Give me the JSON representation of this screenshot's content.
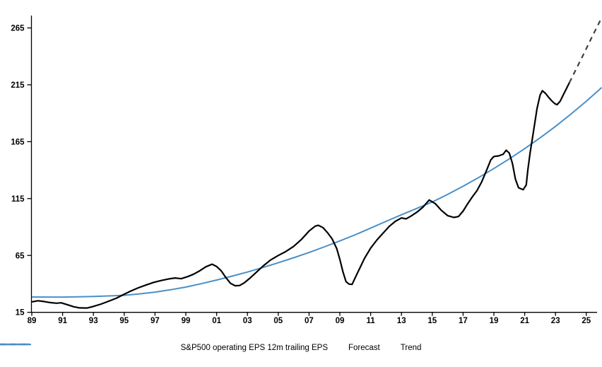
{
  "chart_data": {
    "type": "line",
    "title": "",
    "grid": false,
    "background": "#ffffff",
    "legend_position": "bottom-center",
    "x_axis": {
      "base_year": 1989,
      "range": [
        1989,
        2026.2
      ],
      "tick_years": [
        1989,
        1991,
        1993,
        1995,
        1997,
        1999,
        2001,
        2003,
        2005,
        2007,
        2009,
        2011,
        2013,
        2015,
        2017,
        2019,
        2021,
        2023,
        2025
      ],
      "tick_labels": [
        "89",
        "91",
        "93",
        "95",
        "97",
        "99",
        "01",
        "03",
        "05",
        "07",
        "09",
        "11",
        "13",
        "15",
        "17",
        "19",
        "21",
        "23",
        "25"
      ]
    },
    "y_axis": {
      "ticks": [
        15,
        65,
        115,
        165,
        215,
        265
      ],
      "range": [
        15,
        280
      ]
    },
    "series": [
      {
        "id": "eps",
        "name": "S&P500 operating EPS 12m trailing EPS",
        "color": "#000000",
        "dash": null,
        "width": 2.2,
        "points": [
          [
            1989.0,
            24.2
          ],
          [
            1989.4,
            25.2
          ],
          [
            1989.8,
            24.5
          ],
          [
            1990.2,
            23.6
          ],
          [
            1990.6,
            23.0
          ],
          [
            1990.9,
            23.4
          ],
          [
            1991.3,
            21.8
          ],
          [
            1991.7,
            20.0
          ],
          [
            1992.1,
            18.9
          ],
          [
            1992.6,
            18.8
          ],
          [
            1993.0,
            20.2
          ],
          [
            1993.5,
            22.3
          ],
          [
            1994.0,
            24.8
          ],
          [
            1994.5,
            27.5
          ],
          [
            1994.9,
            30.3
          ],
          [
            1995.4,
            33.5
          ],
          [
            1995.9,
            36.5
          ],
          [
            1996.4,
            38.9
          ],
          [
            1996.9,
            41.3
          ],
          [
            1997.4,
            43.0
          ],
          [
            1997.9,
            44.4
          ],
          [
            1998.3,
            45.2
          ],
          [
            1998.7,
            44.6
          ],
          [
            1999.1,
            46.3
          ],
          [
            1999.5,
            48.5
          ],
          [
            1999.9,
            51.5
          ],
          [
            2000.3,
            55.0
          ],
          [
            2000.7,
            57.3
          ],
          [
            2001.0,
            55.3
          ],
          [
            2001.3,
            51.5
          ],
          [
            2001.6,
            45.5
          ],
          [
            2001.9,
            40.5
          ],
          [
            2002.2,
            38.4
          ],
          [
            2002.5,
            38.6
          ],
          [
            2002.8,
            41.0
          ],
          [
            2003.2,
            45.5
          ],
          [
            2003.6,
            50.5
          ],
          [
            2004.0,
            55.5
          ],
          [
            2004.5,
            61.0
          ],
          [
            2005.0,
            65.0
          ],
          [
            2005.5,
            68.5
          ],
          [
            2006.0,
            73.0
          ],
          [
            2006.5,
            79.0
          ],
          [
            2007.0,
            86.5
          ],
          [
            2007.4,
            90.8
          ],
          [
            2007.6,
            91.5
          ],
          [
            2007.9,
            89.5
          ],
          [
            2008.2,
            85.0
          ],
          [
            2008.5,
            79.5
          ],
          [
            2008.8,
            71.0
          ],
          [
            2009.0,
            61.5
          ],
          [
            2009.2,
            50.5
          ],
          [
            2009.4,
            42.0
          ],
          [
            2009.6,
            39.8
          ],
          [
            2009.8,
            39.6
          ],
          [
            2010.0,
            45.5
          ],
          [
            2010.3,
            54.0
          ],
          [
            2010.6,
            62.5
          ],
          [
            2011.0,
            71.5
          ],
          [
            2011.4,
            78.5
          ],
          [
            2011.8,
            84.5
          ],
          [
            2012.2,
            90.5
          ],
          [
            2012.6,
            95.0
          ],
          [
            2013.0,
            98.0
          ],
          [
            2013.3,
            97.2
          ],
          [
            2013.6,
            99.5
          ],
          [
            2014.0,
            103.0
          ],
          [
            2014.4,
            107.5
          ],
          [
            2014.8,
            113.8
          ],
          [
            2015.2,
            110.5
          ],
          [
            2015.6,
            104.5
          ],
          [
            2016.0,
            100.0
          ],
          [
            2016.4,
            98.4
          ],
          [
            2016.7,
            99.2
          ],
          [
            2017.0,
            104.0
          ],
          [
            2017.3,
            110.5
          ],
          [
            2017.6,
            116.5
          ],
          [
            2017.9,
            122.0
          ],
          [
            2018.2,
            129.5
          ],
          [
            2018.5,
            139.0
          ],
          [
            2018.8,
            149.0
          ],
          [
            2019.0,
            152.0
          ],
          [
            2019.3,
            152.5
          ],
          [
            2019.6,
            154.0
          ],
          [
            2019.8,
            157.5
          ],
          [
            2020.0,
            155.0
          ],
          [
            2020.2,
            146.0
          ],
          [
            2020.4,
            132.0
          ],
          [
            2020.6,
            124.5
          ],
          [
            2020.9,
            122.8
          ],
          [
            2021.1,
            127.0
          ],
          [
            2021.2,
            140.0
          ],
          [
            2021.35,
            155.0
          ],
          [
            2021.5,
            168.0
          ],
          [
            2021.65,
            181.0
          ],
          [
            2021.8,
            194.0
          ],
          [
            2022.0,
            206.0
          ],
          [
            2022.15,
            209.8
          ],
          [
            2022.35,
            207.5
          ],
          [
            2022.55,
            204.0
          ],
          [
            2022.75,
            201.0
          ],
          [
            2022.95,
            198.5
          ],
          [
            2023.1,
            197.5
          ],
          [
            2023.3,
            200.5
          ],
          [
            2023.5,
            206.0
          ],
          [
            2023.7,
            211.5
          ],
          [
            2023.9,
            216.8
          ]
        ]
      },
      {
        "id": "forecast",
        "name": "Forecast",
        "color": "#3f3f3f",
        "dash": "7 6",
        "width": 2.2,
        "points": [
          [
            2023.9,
            216.8
          ],
          [
            2024.4,
            230.5
          ],
          [
            2024.9,
            244.0
          ],
          [
            2025.4,
            258.0
          ],
          [
            2025.95,
            272.7
          ]
        ]
      },
      {
        "id": "trend",
        "name": "Trend",
        "color": "#4a8fc7",
        "dash": null,
        "width": 2.0,
        "points": [
          [
            1989,
            28.5
          ],
          [
            1990,
            28.4
          ],
          [
            1991,
            28.4
          ],
          [
            1992,
            28.6
          ],
          [
            1993,
            29.0
          ],
          [
            1994,
            29.4
          ],
          [
            1995,
            30.0
          ],
          [
            1996,
            31.2
          ],
          [
            1997,
            32.8
          ],
          [
            1998,
            34.8
          ],
          [
            1999,
            37.2
          ],
          [
            2000,
            40.2
          ],
          [
            2001,
            43.4
          ],
          [
            2002,
            46.8
          ],
          [
            2003,
            50.4
          ],
          [
            2004,
            54.4
          ],
          [
            2005,
            58.6
          ],
          [
            2006,
            63.0
          ],
          [
            2007,
            67.6
          ],
          [
            2008,
            72.6
          ],
          [
            2009,
            77.8
          ],
          [
            2010,
            83.2
          ],
          [
            2011,
            89.0
          ],
          [
            2012,
            95.0
          ],
          [
            2013,
            100.8
          ],
          [
            2014,
            106.4
          ],
          [
            2015,
            112.0
          ],
          [
            2016,
            118.7
          ],
          [
            2017,
            125.8
          ],
          [
            2018,
            133.4
          ],
          [
            2019,
            141.4
          ],
          [
            2020,
            149.9
          ],
          [
            2021,
            158.9
          ],
          [
            2022,
            168.4
          ],
          [
            2023,
            178.5
          ],
          [
            2024,
            189.2
          ],
          [
            2025,
            200.6
          ],
          [
            2026,
            212.6
          ]
        ]
      }
    ]
  }
}
